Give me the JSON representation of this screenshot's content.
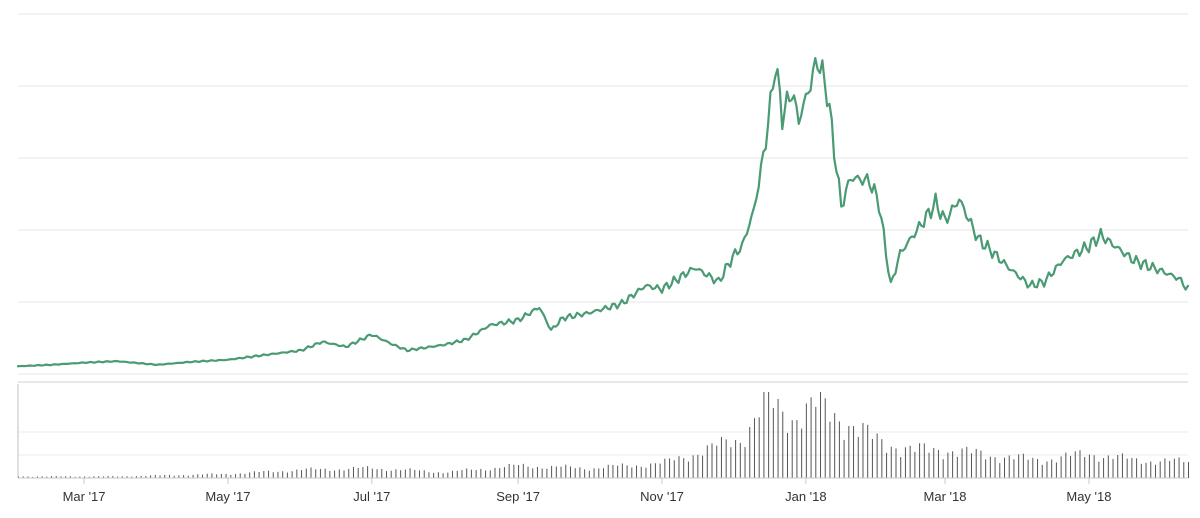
{
  "chart_data": {
    "type": "line",
    "xlabel": "",
    "ylabel": "",
    "x_ticks": [
      "Mar '17",
      "May '17",
      "Jul '17",
      "Sep '17",
      "Nov '17",
      "Jan '18",
      "Mar '18",
      "May '18"
    ],
    "x_range": [
      "2017-02-01",
      "2018-06-12"
    ],
    "grid": true,
    "legend": "none",
    "y_range": [
      0,
      5
    ],
    "series": [
      {
        "kind": "line",
        "color": "#4a9a74",
        "points": [
          [
            "2017-02-01",
            0.08
          ],
          [
            "2017-02-15",
            0.1
          ],
          [
            "2017-03-01",
            0.13
          ],
          [
            "2017-03-15",
            0.15
          ],
          [
            "2017-04-01",
            0.1
          ],
          [
            "2017-04-15",
            0.14
          ],
          [
            "2017-05-01",
            0.17
          ],
          [
            "2017-05-15",
            0.23
          ],
          [
            "2017-06-01",
            0.3
          ],
          [
            "2017-06-10",
            0.42
          ],
          [
            "2017-06-20",
            0.35
          ],
          [
            "2017-07-01",
            0.52
          ],
          [
            "2017-07-10",
            0.38
          ],
          [
            "2017-07-16",
            0.3
          ],
          [
            "2017-08-01",
            0.38
          ],
          [
            "2017-08-10",
            0.45
          ],
          [
            "2017-08-20",
            0.65
          ],
          [
            "2017-09-01",
            0.72
          ],
          [
            "2017-09-10",
            0.9
          ],
          [
            "2017-09-15",
            0.58
          ],
          [
            "2017-09-20",
            0.75
          ],
          [
            "2017-10-01",
            0.82
          ],
          [
            "2017-10-15",
            0.95
          ],
          [
            "2017-10-25",
            1.2
          ],
          [
            "2017-11-01",
            1.15
          ],
          [
            "2017-11-15",
            1.45
          ],
          [
            "2017-11-25",
            1.25
          ],
          [
            "2017-12-01",
            1.6
          ],
          [
            "2017-12-05",
            1.75
          ],
          [
            "2017-12-10",
            2.25
          ],
          [
            "2017-12-14",
            3.0
          ],
          [
            "2017-12-17",
            3.7
          ],
          [
            "2017-12-19",
            4.3
          ],
          [
            "2017-12-22",
            3.55
          ],
          [
            "2017-12-26",
            3.9
          ],
          [
            "2017-12-29",
            3.5
          ],
          [
            "2018-01-02",
            3.9
          ],
          [
            "2018-01-06",
            4.35
          ],
          [
            "2018-01-10",
            3.9
          ],
          [
            "2018-01-16",
            2.3
          ],
          [
            "2018-01-20",
            2.7
          ],
          [
            "2018-01-28",
            2.65
          ],
          [
            "2018-02-01",
            2.35
          ],
          [
            "2018-02-06",
            1.2
          ],
          [
            "2018-02-10",
            1.65
          ],
          [
            "2018-02-20",
            2.1
          ],
          [
            "2018-02-25",
            2.35
          ],
          [
            "2018-03-01",
            2.1
          ],
          [
            "2018-03-07",
            2.4
          ],
          [
            "2018-03-15",
            1.85
          ],
          [
            "2018-03-20",
            1.7
          ],
          [
            "2018-03-28",
            1.45
          ],
          [
            "2018-04-06",
            1.2
          ],
          [
            "2018-04-12",
            1.25
          ],
          [
            "2018-04-20",
            1.55
          ],
          [
            "2018-05-01",
            1.75
          ],
          [
            "2018-05-06",
            1.9
          ],
          [
            "2018-05-12",
            1.75
          ],
          [
            "2018-05-20",
            1.55
          ],
          [
            "2018-06-01",
            1.4
          ],
          [
            "2018-06-08",
            1.3
          ],
          [
            "2018-06-12",
            1.15
          ]
        ]
      },
      {
        "kind": "bar",
        "color": "#555555",
        "points": [
          [
            "2017-02-01",
            0.02
          ],
          [
            "2017-03-15",
            0.02
          ],
          [
            "2017-05-01",
            0.05
          ],
          [
            "2017-06-01",
            0.1
          ],
          [
            "2017-07-01",
            0.12
          ],
          [
            "2017-08-01",
            0.07
          ],
          [
            "2017-09-01",
            0.15
          ],
          [
            "2017-10-01",
            0.12
          ],
          [
            "2017-11-01",
            0.18
          ],
          [
            "2017-11-20",
            0.35
          ],
          [
            "2017-12-05",
            0.5
          ],
          [
            "2017-12-15",
            0.95
          ],
          [
            "2017-12-25",
            0.75
          ],
          [
            "2018-01-05",
            0.9
          ],
          [
            "2018-01-15",
            0.75
          ],
          [
            "2018-02-01",
            0.45
          ],
          [
            "2018-02-15",
            0.35
          ],
          [
            "2018-03-01",
            0.35
          ],
          [
            "2018-03-20",
            0.28
          ],
          [
            "2018-04-10",
            0.22
          ],
          [
            "2018-05-01",
            0.3
          ],
          [
            "2018-05-20",
            0.22
          ],
          [
            "2018-06-12",
            0.2
          ]
        ]
      }
    ]
  }
}
